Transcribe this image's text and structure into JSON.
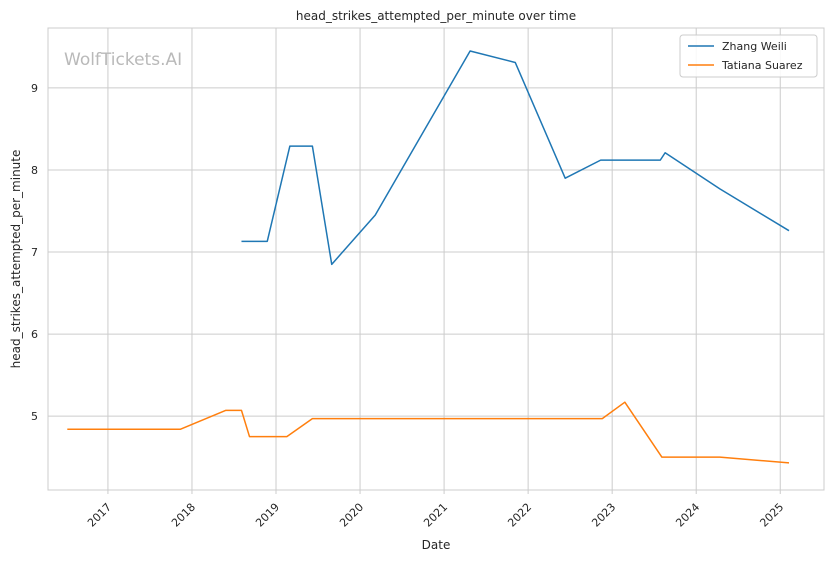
{
  "chart_data": {
    "type": "line",
    "title": "head_strikes_attempted_per_minute over time",
    "xlabel": "Date",
    "ylabel": "head_strikes_attempted_per_minute",
    "watermark": "WolfTickets.AI",
    "grid": true,
    "legend_position": "top-right",
    "x_ticks": [
      "2017",
      "2018",
      "2019",
      "2020",
      "2021",
      "2022",
      "2023",
      "2024",
      "2025"
    ],
    "y_ticks": [
      "5",
      "6",
      "7",
      "8",
      "9"
    ],
    "xlim": [
      "2016-04-15",
      "2025-07-10"
    ],
    "ylim": [
      4.1,
      9.73
    ],
    "series": [
      {
        "name": "Zhang Weili",
        "color": "#1f77b4",
        "points": [
          [
            "2018-08-04",
            7.13
          ],
          [
            "2018-11-24",
            7.13
          ],
          [
            "2019-03-02",
            8.29
          ],
          [
            "2019-06-08",
            8.29
          ],
          [
            "2019-08-31",
            6.85
          ],
          [
            "2020-03-07",
            7.45
          ],
          [
            "2021-04-24",
            9.45
          ],
          [
            "2021-11-06",
            9.31
          ],
          [
            "2022-06-11",
            7.9
          ],
          [
            "2022-11-12",
            8.12
          ],
          [
            "2023-07-29",
            8.12
          ],
          [
            "2023-08-19",
            8.21
          ],
          [
            "2024-04-13",
            7.77
          ],
          [
            "2025-02-08",
            7.26
          ]
        ]
      },
      {
        "name": "Tatiana Suarez",
        "color": "#ff7f0e",
        "points": [
          [
            "2016-07-08",
            4.84
          ],
          [
            "2017-11-11",
            4.84
          ],
          [
            "2018-05-27",
            5.07
          ],
          [
            "2018-08-04",
            5.07
          ],
          [
            "2018-09-08",
            4.75
          ],
          [
            "2019-02-17",
            4.75
          ],
          [
            "2019-06-08",
            4.97
          ],
          [
            "2022-11-19",
            4.97
          ],
          [
            "2023-02-25",
            5.17
          ],
          [
            "2023-08-05",
            4.5
          ],
          [
            "2024-04-13",
            4.5
          ],
          [
            "2025-02-08",
            4.43
          ]
        ]
      }
    ]
  }
}
